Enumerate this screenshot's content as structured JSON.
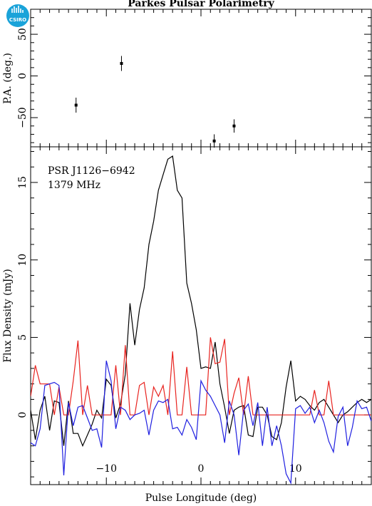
{
  "logo": {
    "text": "CSIRO",
    "color": "#1aa3d9"
  },
  "chart_data": [
    {
      "type": "scatter",
      "title": "Parkes Pulsar Polarimetry",
      "ylabel": "P.A. (deg.)",
      "xlim": [
        -18,
        18
      ],
      "ylim": [
        -85,
        80
      ],
      "yticks": [
        -50,
        0,
        50
      ],
      "points": [
        {
          "x": -13.2,
          "y": -35,
          "err": 9
        },
        {
          "x": -8.4,
          "y": 15,
          "err": 9
        },
        {
          "x": 1.4,
          "y": -78,
          "err": 8
        },
        {
          "x": 3.5,
          "y": -60,
          "err": 8
        }
      ]
    },
    {
      "type": "line",
      "xlabel": "Pulse Longitude (deg)",
      "ylabel": "Flux Density (mJy)",
      "xlim": [
        -18,
        18
      ],
      "ylim": [
        -4.5,
        17.3
      ],
      "xticks": [
        -10,
        0,
        10
      ],
      "xtick_labels": [
        "−10",
        "0",
        "10"
      ],
      "yticks": [
        0,
        5,
        10,
        15
      ],
      "annotations": [
        "PSR J1126−6942",
        "1379 MHz"
      ],
      "series": [
        {
          "color": "#000000",
          "x": [
            -18.0,
            -17.5,
            -17.0,
            -16.5,
            -16.0,
            -15.5,
            -15.0,
            -14.5,
            -14.0,
            -13.5,
            -13.0,
            -12.5,
            -12.0,
            -11.5,
            -11.0,
            -10.5,
            -10.0,
            -9.5,
            -9.0,
            -8.5,
            -8.0,
            -7.5,
            -7.0,
            -6.5,
            -6.0,
            -5.5,
            -5.0,
            -4.5,
            -4.0,
            -3.5,
            -3.0,
            -2.5,
            -2.0,
            -1.5,
            -1.0,
            -0.5,
            0.0,
            0.5,
            1.0,
            1.5,
            2.0,
            2.5,
            3.0,
            3.5,
            4.0,
            4.5,
            5.0,
            5.5,
            6.0,
            6.5,
            7.0,
            7.5,
            8.0,
            8.5,
            9.0,
            9.5,
            10.0,
            10.5,
            11.0,
            11.5,
            12.0,
            12.5,
            13.0,
            13.5,
            14.0,
            14.5,
            15.0,
            15.5,
            16.0,
            16.5,
            17.0,
            17.5,
            18.0
          ],
          "y": [
            0.3,
            -1.6,
            0.3,
            1.2,
            -1.0,
            0.9,
            0.8,
            -2.0,
            0.9,
            -1.2,
            -1.2,
            -2.0,
            -1.3,
            -0.6,
            0.3,
            -0.2,
            2.3,
            1.9,
            -0.2,
            0.7,
            2.6,
            7.2,
            4.5,
            6.8,
            8.2,
            11.0,
            12.5,
            14.5,
            15.5,
            16.5,
            16.7,
            14.5,
            14.0,
            8.5,
            7.2,
            5.5,
            3.0,
            3.1,
            3.0,
            4.7,
            2.0,
            0.5,
            -1.2,
            0.3,
            0.5,
            0.6,
            -1.3,
            -1.4,
            0.5,
            0.5,
            0.0,
            -1.4,
            -1.6,
            -0.5,
            1.8,
            3.5,
            0.9,
            1.2,
            1.0,
            0.6,
            0.3,
            0.8,
            1.0,
            0.5,
            0.0,
            -0.5,
            0.0,
            0.2,
            0.5,
            0.8,
            1.0,
            0.8,
            1.0
          ]
        },
        {
          "color": "#e8231f",
          "x": [
            -18.0,
            -17.5,
            -17.0,
            -16.5,
            -16.0,
            -15.5,
            -15.0,
            -14.5,
            -14.0,
            -13.5,
            -13.0,
            -12.5,
            -12.0,
            -11.5,
            -11.0,
            -10.5,
            -10.0,
            -9.5,
            -9.0,
            -8.5,
            -8.0,
            -7.5,
            -7.0,
            -6.5,
            -6.0,
            -5.5,
            -5.0,
            -4.5,
            -4.0,
            -3.5,
            -3.0,
            -2.5,
            -2.0,
            -1.5,
            -1.0,
            -0.5,
            0.0,
            0.5,
            1.0,
            1.5,
            2.0,
            2.5,
            3.0,
            3.5,
            4.0,
            4.5,
            5.0,
            5.5,
            6.0,
            6.5,
            7.0,
            7.5,
            8.0,
            8.5,
            9.0,
            9.5,
            10.0,
            10.5,
            11.0,
            11.5,
            12.0,
            12.5,
            13.0,
            13.5,
            14.0,
            14.5,
            15.0,
            15.5,
            16.0,
            16.5,
            17.0,
            17.5,
            18.0
          ],
          "y": [
            1.2,
            3.2,
            2.0,
            2.0,
            2.0,
            0.0,
            1.8,
            0.0,
            0.0,
            2.2,
            4.8,
            0.0,
            1.9,
            0.0,
            0.0,
            0.0,
            0.0,
            0.0,
            3.2,
            0.0,
            4.5,
            0.0,
            0.0,
            1.9,
            2.1,
            0.0,
            1.8,
            1.2,
            1.9,
            0.0,
            4.1,
            0.0,
            0.0,
            3.1,
            0.0,
            0.0,
            0.0,
            0.0,
            5.0,
            3.3,
            3.4,
            4.9,
            0.0,
            1.4,
            2.4,
            0.0,
            2.5,
            0.0,
            0.0,
            0.0,
            0.0,
            0.0,
            0.0,
            0.0,
            0.0,
            0.0,
            0.0,
            0.0,
            0.0,
            0.0,
            1.6,
            0.0,
            0.0,
            2.2,
            0.0,
            0.0,
            0.0,
            0.0,
            0.0,
            0.0,
            0.0,
            0.0,
            0.0
          ]
        },
        {
          "color": "#1f1fe0",
          "x": [
            -18.0,
            -17.5,
            -17.0,
            -16.5,
            -16.0,
            -15.5,
            -15.0,
            -14.5,
            -14.0,
            -13.5,
            -13.0,
            -12.5,
            -12.0,
            -11.5,
            -11.0,
            -10.5,
            -10.0,
            -9.5,
            -9.0,
            -8.5,
            -8.0,
            -7.5,
            -7.0,
            -6.5,
            -6.0,
            -5.5,
            -5.0,
            -4.5,
            -4.0,
            -3.5,
            -3.0,
            -2.5,
            -2.0,
            -1.5,
            -1.0,
            -0.5,
            0.0,
            0.5,
            1.0,
            1.5,
            2.0,
            2.5,
            3.0,
            3.5,
            4.0,
            4.5,
            5.0,
            5.5,
            6.0,
            6.5,
            7.0,
            7.5,
            8.0,
            8.5,
            9.0,
            9.5,
            10.0,
            10.5,
            11.0,
            11.5,
            12.0,
            12.5,
            13.0,
            13.5,
            14.0,
            14.5,
            15.0,
            15.5,
            16.0,
            16.5,
            17.0,
            17.5,
            18.0
          ],
          "y": [
            -1.8,
            -2.0,
            -0.9,
            1.9,
            2.0,
            2.1,
            1.9,
            -3.9,
            0.8,
            -0.7,
            0.5,
            0.6,
            -0.2,
            -1.0,
            -0.9,
            -2.1,
            3.5,
            2.2,
            -0.9,
            0.5,
            0.3,
            -0.3,
            0.0,
            0.1,
            0.3,
            -1.3,
            0.3,
            0.9,
            0.8,
            1.0,
            -0.9,
            -0.8,
            -1.3,
            -0.3,
            -0.8,
            -1.6,
            2.2,
            1.6,
            1.2,
            0.6,
            0.0,
            -1.8,
            0.9,
            0.0,
            -2.6,
            0.3,
            0.7,
            -0.7,
            0.8,
            -2.0,
            0.5,
            -2.0,
            -0.7,
            -2.0,
            -3.8,
            -4.4,
            0.4,
            0.6,
            0.1,
            0.5,
            -0.5,
            0.3,
            -0.5,
            -1.7,
            -2.4,
            -0.1,
            0.5,
            -2.0,
            -0.8,
            0.9,
            0.4,
            0.5,
            -0.4
          ]
        }
      ]
    }
  ]
}
